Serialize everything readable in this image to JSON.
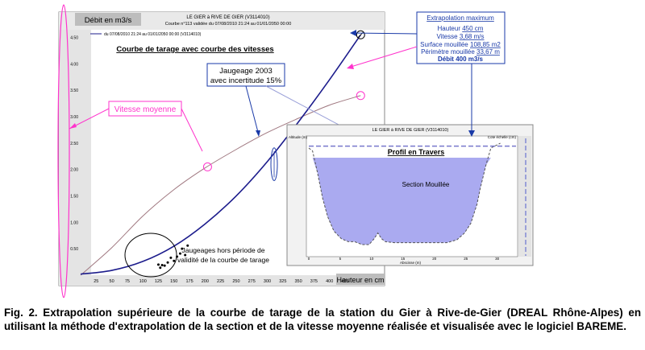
{
  "figure": {
    "header_title": "LE GIER à RIVE DE GIER (V3114010)",
    "header_subtitle": "Courbe n°113 validée du 07/08/2010 21:24 au 01/01/2050 00:00",
    "legend_text": "du 07/08/2010 21:24 au 01/01/2050 00:00 (V3114010)",
    "plot_title": "Courbe de tarage avec courbe des vitesses",
    "left_axis_label": "Débit en m3/s",
    "bottom_axis_label": "Hauteur en cm",
    "callout_vitesse": "Vitesse moyenne",
    "callout_jaugeage_line1": "Jaugeage 2003",
    "callout_jaugeage_line2": "avec incertitude 15%",
    "callout_hors_periode_line1": "Jaugeages hors période de",
    "callout_hors_periode_line2": "validité de la courbe de tarage"
  },
  "extrapolation": {
    "title": "Extrapolation maximum",
    "hauteur_label": "Hauteur",
    "hauteur_value": "450 cm",
    "vitesse_label": "Vitesse",
    "vitesse_value": "3,68 m/s",
    "surface_label": "Surface mouillée",
    "surface_value": "108,85 m2",
    "perimetre_label": "Périmètre mouillée",
    "perimetre_value": "33,67 m",
    "debit_label": "Débit",
    "debit_value": "400 m3/s"
  },
  "profile": {
    "header_title": "LE GIER à RIVE DE GIER (V3114010)",
    "title": "Profil en Travers",
    "section_label": "Section Mouillée",
    "y_axis_label": "Altitude (m)",
    "x_axis_label": "Abscisse (m)",
    "right_axis_label": "Cote échelle (cm)"
  },
  "caption": "Fig. 2. Extrapolation supérieure de la courbe de tarage de la station du Gier à Rive-de-Gier (DREAL Rhône-Alpes) en utilisant la méthode d'extrapolation de la section et de la vitesse moyenne réalisée et visualisée avec le logiciel BAREME.",
  "chart_data": [
    {
      "type": "line",
      "title": "Courbe de tarage avec courbe des vitesses",
      "xlabel": "Hauteur en cm",
      "ylabel": "Débit en m3/s",
      "x_ticks": [
        25,
        50,
        75,
        100,
        125,
        150,
        175,
        200,
        225,
        250,
        275,
        300,
        325,
        350,
        375,
        400,
        425
      ],
      "y_ticks": [
        "0.50",
        "1.00",
        "1.50",
        "2.00",
        "2.50",
        "3.00",
        "3.50",
        "4.00",
        "4.50"
      ],
      "xlim": [
        0,
        460
      ],
      "ylim": [
        0,
        4.6
      ],
      "colors": {
        "rating": "#1c1c8c",
        "velocity": "#a07880",
        "callout": "#ff33cc",
        "box": "#1a3aa8"
      },
      "series": [
        {
          "name": "rating",
          "x": [
            0,
            50,
            100,
            150,
            200,
            250,
            300,
            350,
            400,
            450
          ],
          "y": [
            0.02,
            0.09,
            0.26,
            0.55,
            0.97,
            1.5,
            2.15,
            2.9,
            3.7,
            4.55
          ]
        },
        {
          "name": "velocity",
          "x": [
            0,
            50,
            100,
            150,
            200,
            250,
            300,
            350,
            400,
            450
          ],
          "y": [
            0.0,
            0.52,
            1.12,
            1.62,
            2.03,
            2.38,
            2.7,
            2.97,
            3.22,
            3.4
          ]
        }
      ],
      "gaugings": {
        "x": [
          125,
          128,
          131,
          135,
          140,
          145,
          150,
          155,
          160,
          163,
          168,
          172
        ],
        "y": [
          0.2,
          0.14,
          0.19,
          0.18,
          0.24,
          0.33,
          0.27,
          0.35,
          0.41,
          0.5,
          0.38,
          0.56
        ]
      },
      "gauging_2003": {
        "x": 311,
        "y": 2.1,
        "error": 0.31
      },
      "extrapolation_point": {
        "x": 450,
        "y": 4.55
      },
      "velocity_marker_1": {
        "x": 204,
        "y": 2.05
      },
      "velocity_marker_2": {
        "x": 450,
        "y": 3.4
      }
    },
    {
      "type": "area",
      "title": "Profil en Travers",
      "xlabel": "Abscisse (m)",
      "ylabel": "Altitude (m)",
      "x_ticks": [
        0,
        5,
        10,
        15,
        20,
        25,
        30
      ],
      "xlim": [
        0,
        33
      ],
      "water_level": 0.9,
      "profile_x": [
        0,
        0.6,
        1.4,
        2.2,
        3.0,
        4.0,
        5.2,
        6.3,
        7.3,
        8.5,
        9.6,
        10.4,
        11.0,
        11.6,
        12.2,
        13.6,
        15.8,
        18.0,
        20.0,
        22.0,
        23.6,
        24.8,
        25.8,
        26.8,
        27.3,
        28.2,
        29.0,
        30.5
      ],
      "profile_y": [
        1.0,
        0.97,
        0.74,
        0.48,
        0.29,
        0.14,
        0.06,
        0.03,
        0.03,
        0.0,
        0.0,
        0.06,
        0.12,
        0.06,
        0.03,
        0.02,
        0.02,
        0.02,
        0.02,
        0.02,
        0.05,
        0.12,
        0.22,
        0.42,
        0.58,
        0.82,
        1.0,
        1.05
      ]
    }
  ]
}
